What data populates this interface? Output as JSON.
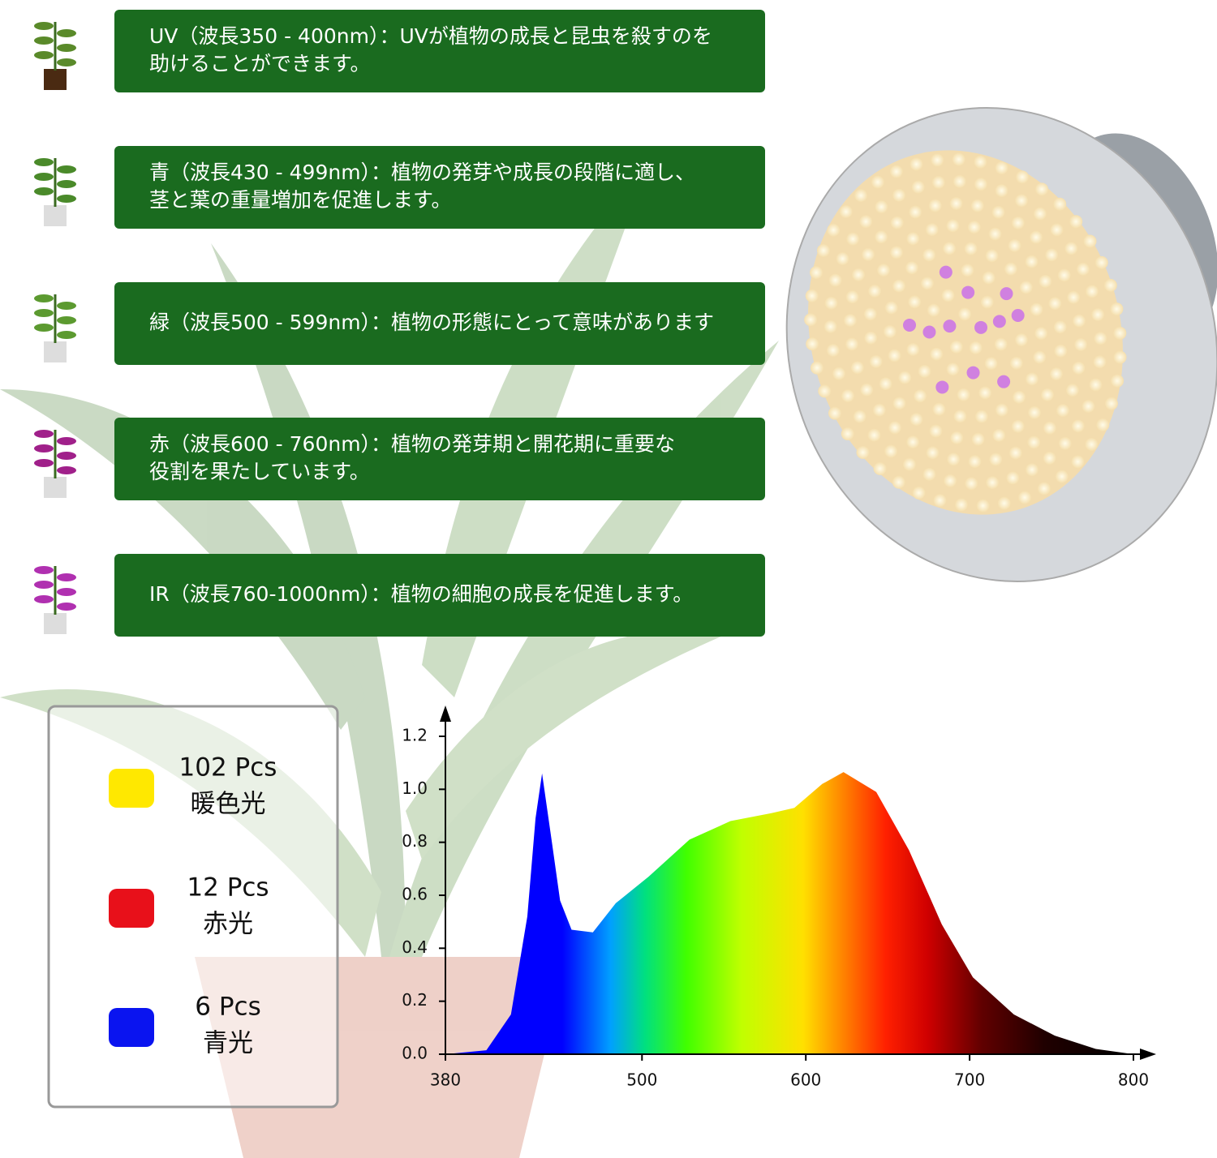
{
  "features": [
    {
      "lines": [
        "UV（波長350 - 400nm）：UVが植物の成長と昆虫を殺すのを",
        "助けることができます。"
      ]
    },
    {
      "lines": [
        "青（波長430 - 499nm）：植物の発芽や成長の段階に適し、",
        "茎と葉の重量増加を促進します。"
      ]
    },
    {
      "lines": [
        "緑（波長500 - 599nm）：植物の形態にとって意味があります"
      ]
    },
    {
      "lines": [
        "赤（波長600 - 760nm）：植物の発芽期と開花期に重要な",
        "役割を果たしています。"
      ]
    },
    {
      "lines": [
        "IR（波長760-1000nm）：植物の細胞の成長を促進します。"
      ]
    }
  ],
  "legend": [
    {
      "count": "102 Pcs",
      "label": "暖色光",
      "color": "#ffe800"
    },
    {
      "count": "12 Pcs",
      "label": "赤光",
      "color": "#e8101a"
    },
    {
      "count": "6 Pcs",
      "label": "青光",
      "color": "#0a14f0"
    }
  ],
  "chart_data": {
    "type": "area",
    "x": [
      380,
      405,
      420,
      430,
      435,
      439,
      445,
      450,
      457,
      470,
      484,
      504,
      529,
      554,
      579,
      593,
      610,
      623,
      643,
      663,
      683,
      702,
      727,
      752,
      777,
      800
    ],
    "values": [
      0,
      0.015,
      0.15,
      0.52,
      0.89,
      1.06,
      0.8,
      0.58,
      0.47,
      0.46,
      0.57,
      0.67,
      0.81,
      0.88,
      0.91,
      0.93,
      1.02,
      1.065,
      0.99,
      0.77,
      0.49,
      0.29,
      0.15,
      0.07,
      0.02,
      0
    ],
    "colors": [
      "#0000ff",
      "#0000ff",
      "#00a0ff",
      "#00e080",
      "#40ff00",
      "#c0ff00",
      "#ffe000",
      "#ff8000",
      "#ff2000",
      "#d00000",
      "#600000",
      "#200000",
      "#000000"
    ],
    "xlim": [
      380,
      800
    ],
    "ylim": [
      0,
      1.2
    ],
    "xticks": [
      380,
      500,
      600,
      700,
      800
    ],
    "yticks": [
      {
        "value": 0,
        "label": "0.0"
      },
      {
        "value": 0.2,
        "label": "0.2"
      },
      {
        "value": 0.4,
        "label": "0.4"
      },
      {
        "value": 0.6,
        "label": "0.6"
      },
      {
        "value": 0.8,
        "label": "0.8"
      },
      {
        "value": 1.0,
        "label": "1.0"
      },
      {
        "value": 1.2,
        "label": "1.2"
      }
    ]
  }
}
